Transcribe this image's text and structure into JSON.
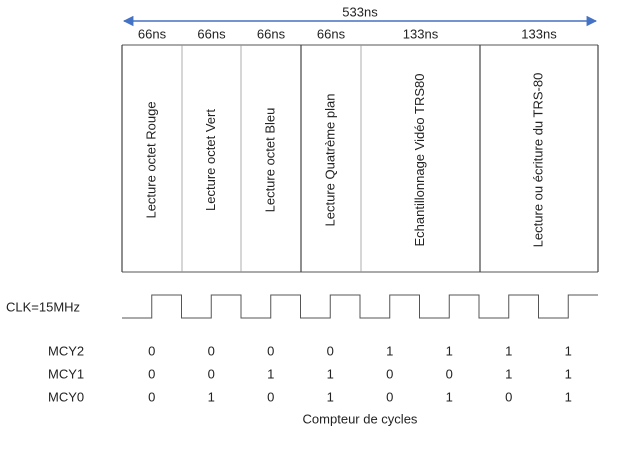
{
  "timing": {
    "total": "533ns",
    "slots": [
      {
        "duration": "66ns",
        "label": "Lecture octet Rouge"
      },
      {
        "duration": "66ns",
        "label": "Lecture octet Vert"
      },
      {
        "duration": "66ns",
        "label": "Lecture octet Bleu"
      },
      {
        "duration": "66ns",
        "label": "Lecture Quatrème plan"
      },
      {
        "duration": "133ns",
        "label": "Echantillonnage Vidéo TRS80"
      },
      {
        "duration": "133ns",
        "label": "Lecture ou écriture du TRS-80"
      }
    ]
  },
  "clock": {
    "label": "CLK=15MHz"
  },
  "counter": {
    "rows": [
      {
        "name": "MCY2",
        "bits": [
          0,
          0,
          0,
          0,
          1,
          1,
          1,
          1
        ]
      },
      {
        "name": "MCY1",
        "bits": [
          0,
          0,
          1,
          1,
          0,
          0,
          1,
          1
        ]
      },
      {
        "name": "MCY0",
        "bits": [
          0,
          1,
          0,
          1,
          0,
          1,
          0,
          1
        ]
      }
    ],
    "caption": "Compteur de cycles"
  }
}
